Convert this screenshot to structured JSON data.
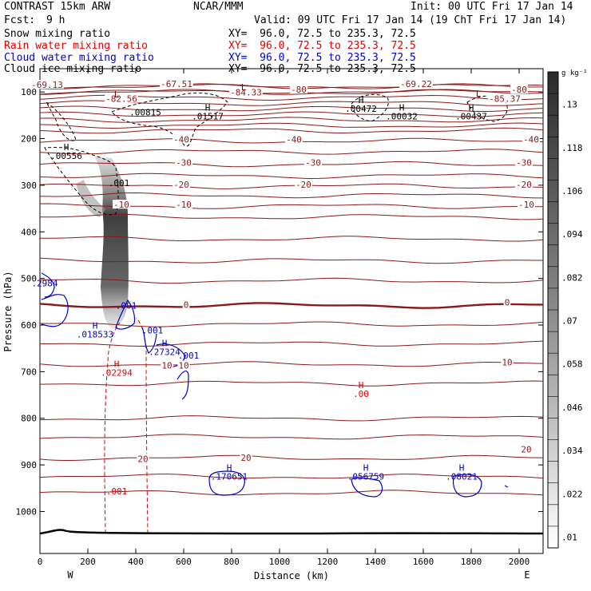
{
  "header": {
    "model": "CONTRAST 15km ARW",
    "center": "NCAR/MMM",
    "init": "Init: 00 UTC Fri 17 Jan 14",
    "fcst_label": "Fcst:",
    "fcst_value": "9 h",
    "valid": "Valid: 09 UTC Fri 17 Jan 14 (19 ChT Fri 17 Jan 14)"
  },
  "fields": [
    {
      "name": "Snow mixing ratio",
      "xy": "XY=  96.0, 72.5 to 235.3, 72.5",
      "color": "#000000"
    },
    {
      "name": "Rain water mixing ratio",
      "xy": "XY=  96.0, 72.5 to 235.3, 72.5",
      "color": "#e00000"
    },
    {
      "name": "Cloud water mixing ratio",
      "xy": "XY=  96.0, 72.5 to 235.3, 72.5",
      "color": "#0000cc"
    },
    {
      "name": "Cloud ice mixing ratio",
      "xy": "XY=  96.0, 72.5 to 235.3, 72.5",
      "color": "#000000"
    }
  ],
  "chart_data": {
    "type": "cross-section",
    "xlabel": "Distance (km)",
    "ylabel": "Pressure (hPa)",
    "xlim": [
      0,
      2100
    ],
    "ylim": [
      1090,
      50
    ],
    "x_ticks": [
      0,
      200,
      400,
      600,
      800,
      1000,
      1200,
      1400,
      1600,
      1800,
      2000
    ],
    "x_tick_labels": [
      "0",
      "200",
      "400",
      "600",
      "800",
      "1000",
      "1200",
      "1400",
      "1600",
      "1800",
      "2000"
    ],
    "y_ticks": [
      100,
      200,
      300,
      400,
      500,
      600,
      700,
      800,
      900,
      1000
    ],
    "y_tick_labels": [
      "100",
      "200",
      "300",
      "400",
      "500",
      "600",
      "700",
      "800",
      "900",
      "1000"
    ],
    "west_label": "W",
    "east_label": "E",
    "colorbar": {
      "unit": "g kg⁻¹",
      "labels": [
        ".13",
        ".118",
        ".106",
        ".094",
        ".082",
        ".07",
        ".058",
        ".046",
        ".034",
        ".022",
        ".01"
      ]
    },
    "temperature_isotherms": [
      {
        "p": 88,
        "label": "-80"
      },
      {
        "p": 100,
        "label": "-80"
      },
      {
        "p": 205,
        "label": "-40"
      },
      {
        "p": 255,
        "label": "-30"
      },
      {
        "p": 302,
        "label": "-20"
      },
      {
        "p": 345,
        "label": "-10"
      },
      {
        "p": 462,
        "label": "-10"
      },
      {
        "p": 558,
        "label": "0"
      },
      {
        "p": 684,
        "label": "10"
      },
      {
        "p": 885,
        "label": "20"
      }
    ],
    "temperature_labels": [
      {
        "x": 30,
        "p": 88,
        "text": "-69.13"
      },
      {
        "x": 570,
        "p": 86,
        "text": "-67.51"
      },
      {
        "x": 1570,
        "p": 86,
        "text": "-69.22"
      },
      {
        "x": 340,
        "p": 118,
        "text": "-82.56"
      },
      {
        "x": 860,
        "p": 104,
        "text": "-84.33"
      },
      {
        "x": 1940,
        "p": 118,
        "text": "-85.37"
      },
      {
        "x": 1080,
        "p": 98,
        "text": "-80"
      },
      {
        "x": 2000,
        "p": 98,
        "text": "-80"
      },
      {
        "x": 590,
        "p": 205,
        "text": "-40"
      },
      {
        "x": 1060,
        "p": 205,
        "text": "-40"
      },
      {
        "x": 2050,
        "p": 205,
        "text": "-40"
      },
      {
        "x": 600,
        "p": 255,
        "text": "-30"
      },
      {
        "x": 1140,
        "p": 255,
        "text": "-30"
      },
      {
        "x": 2020,
        "p": 255,
        "text": "-30"
      },
      {
        "x": 590,
        "p": 302,
        "text": "-20"
      },
      {
        "x": 1100,
        "p": 302,
        "text": "-20"
      },
      {
        "x": 2020,
        "p": 302,
        "text": "-20"
      },
      {
        "x": 340,
        "p": 345,
        "text": "-10"
      },
      {
        "x": 600,
        "p": 345,
        "text": "-10"
      },
      {
        "x": 2030,
        "p": 345,
        "text": "-10"
      },
      {
        "x": 610,
        "p": 560,
        "text": "0"
      },
      {
        "x": 1950,
        "p": 555,
        "text": "0"
      },
      {
        "x": 530,
        "p": 690,
        "text": "10"
      },
      {
        "x": 600,
        "p": 690,
        "text": "10"
      },
      {
        "x": 1950,
        "p": 683,
        "text": "10"
      },
      {
        "x": 430,
        "p": 890,
        "text": "20"
      },
      {
        "x": 860,
        "p": 888,
        "text": "20"
      },
      {
        "x": 2030,
        "p": 870,
        "text": "20"
      }
    ],
    "extrema": [
      {
        "x": 320,
        "p": 112,
        "mark": "L",
        "value": "",
        "color": "#8b0000"
      },
      {
        "x": 850,
        "p": 96,
        "mark": "L",
        "value": "",
        "color": "#8b0000"
      },
      {
        "x": 1830,
        "p": 110,
        "mark": "L",
        "value": "",
        "color": "#8b0000"
      },
      {
        "x": 440,
        "p": 150,
        "mark": "",
        "value": ".00815",
        "color": "#000000"
      },
      {
        "x": 700,
        "p": 140,
        "mark": "H",
        "value": ".01517",
        "color": "#000000"
      },
      {
        "x": 1340,
        "p": 124,
        "mark": "H",
        "value": ".00472",
        "color": "#000000"
      },
      {
        "x": 1510,
        "p": 140,
        "mark": "H",
        "value": ".00032",
        "color": "#000000"
      },
      {
        "x": 1800,
        "p": 140,
        "mark": "H",
        "value": ".00437",
        "color": "#000000"
      },
      {
        "x": 110,
        "p": 225,
        "mark": "H",
        "value": ".00556",
        "color": "#000000"
      },
      {
        "x": 330,
        "p": 302,
        "mark": "",
        "value": ".001",
        "color": "#000000"
      },
      {
        "x": 20,
        "p": 517,
        "mark": "",
        "value": ".2984",
        "color": "#0000cc"
      },
      {
        "x": 360,
        "p": 565,
        "mark": "",
        "value": ".001",
        "color": "#0000cc"
      },
      {
        "x": 230,
        "p": 608,
        "mark": "H",
        "value": ".018533",
        "color": "#0000cc"
      },
      {
        "x": 470,
        "p": 618,
        "mark": "",
        "value": ".001",
        "color": "#0000cc"
      },
      {
        "x": 520,
        "p": 645,
        "mark": "H",
        "value": ".27324",
        "color": "#0000cc"
      },
      {
        "x": 620,
        "p": 672,
        "mark": "",
        "value": ".001",
        "color": "#0000cc"
      },
      {
        "x": 320,
        "p": 690,
        "mark": "H",
        "value": ".02294",
        "color": "#e00000"
      },
      {
        "x": 1340,
        "p": 735,
        "mark": "H",
        "value": ".00",
        "color": "#e00000"
      },
      {
        "x": 320,
        "p": 963,
        "mark": "",
        "value": ".001",
        "color": "#e00000"
      },
      {
        "x": 790,
        "p": 913,
        "mark": "H",
        "value": ".170651",
        "color": "#0000cc"
      },
      {
        "x": 1360,
        "p": 913,
        "mark": "H",
        "value": ".056759",
        "color": "#0000cc"
      },
      {
        "x": 1760,
        "p": 913,
        "mark": "H",
        "value": ".08021",
        "color": "#0000cc"
      }
    ]
  }
}
